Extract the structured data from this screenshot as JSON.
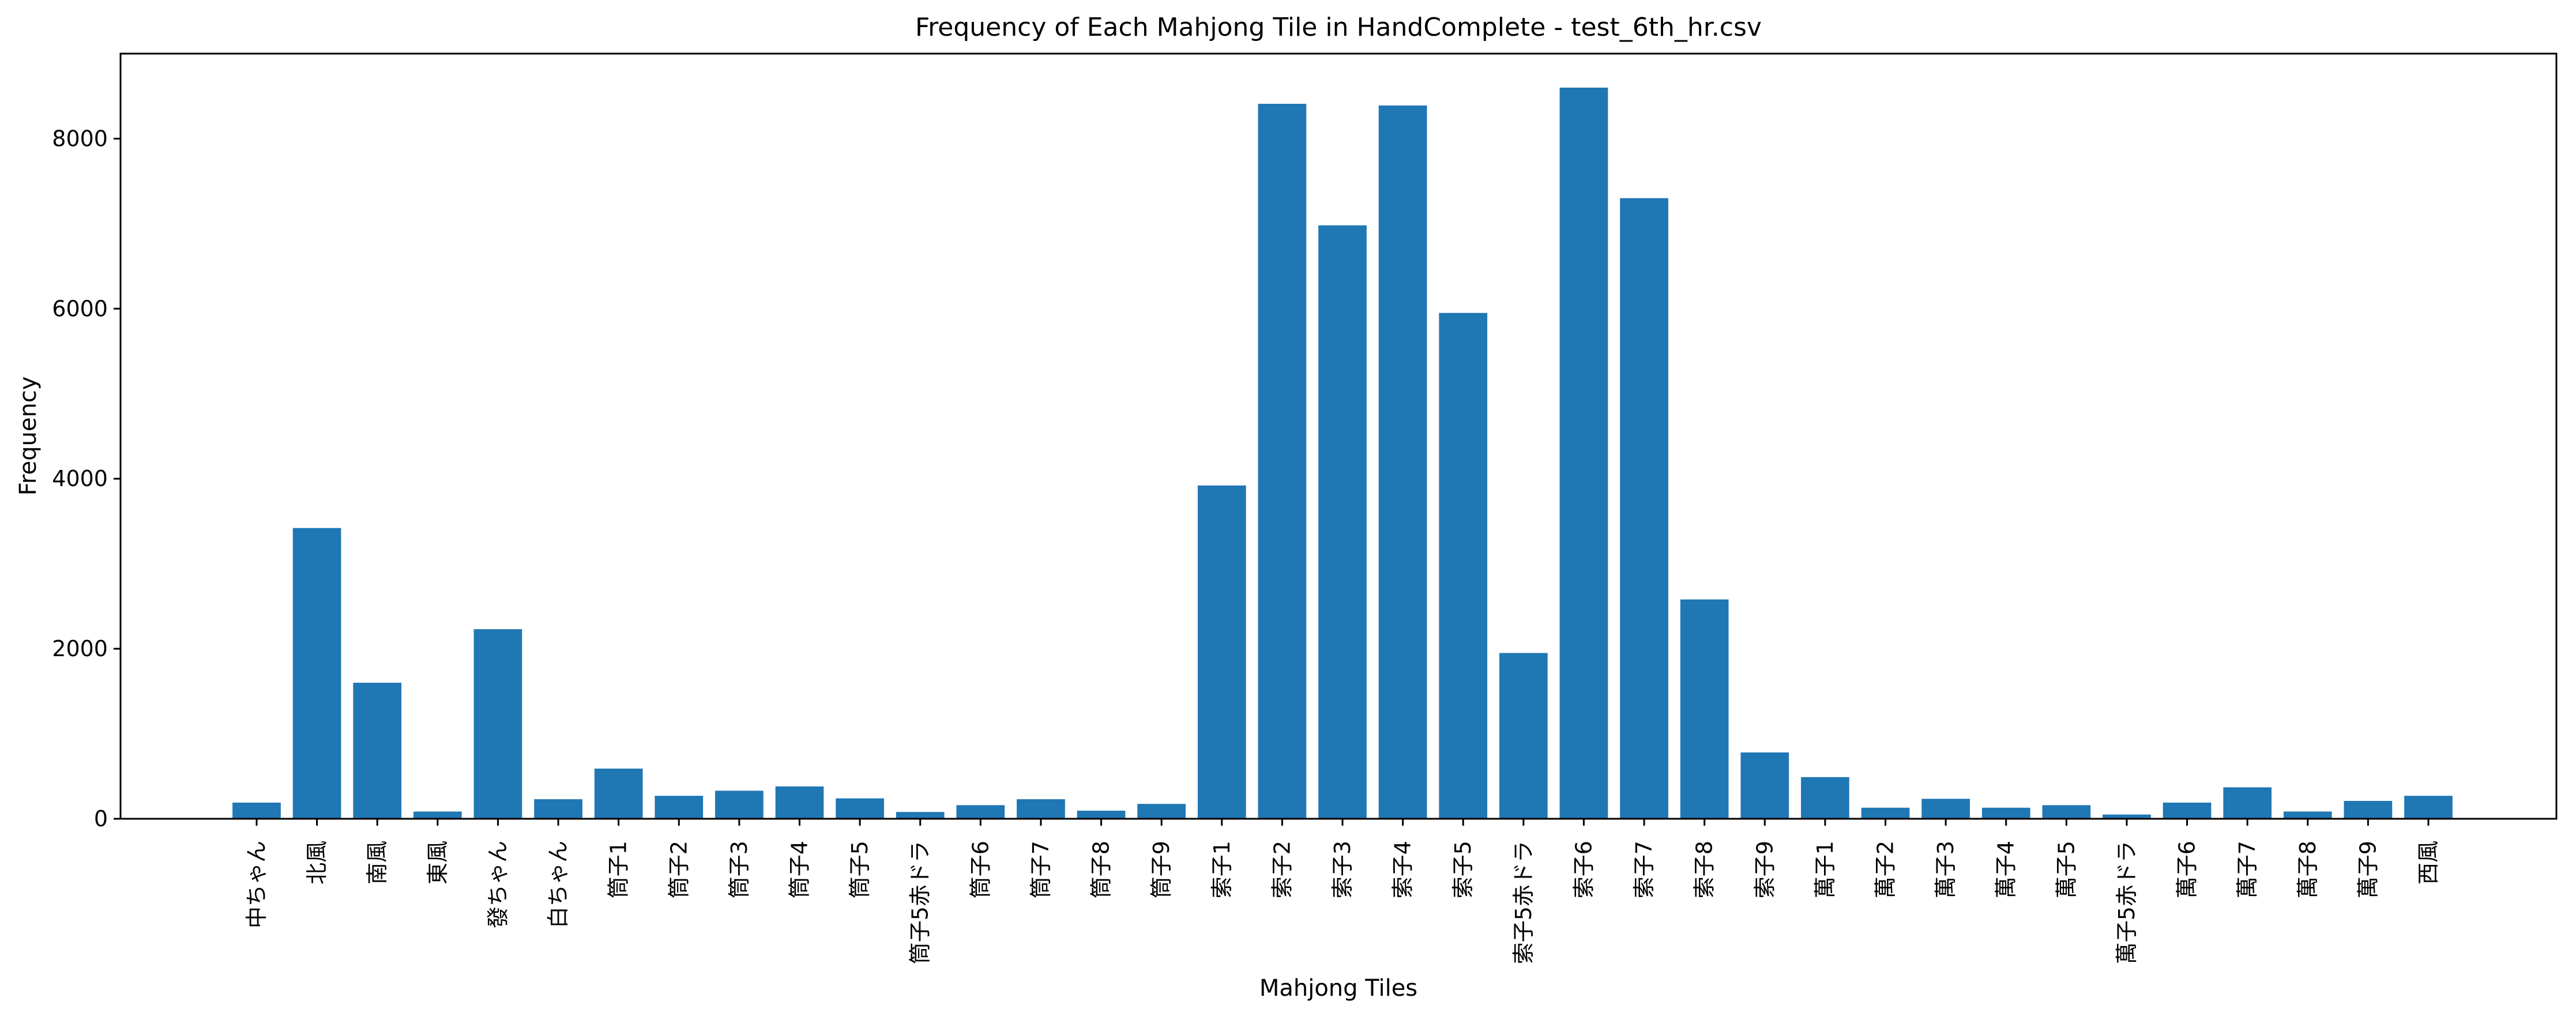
{
  "chart_data": {
    "type": "bar",
    "title": "Frequency of Each Mahjong Tile in HandComplete - test_6th_hr.csv",
    "xlabel": "Mahjong Tiles",
    "ylabel": "Frequency",
    "ylim": [
      0,
      9000
    ],
    "yticks": [
      0,
      2000,
      4000,
      6000,
      8000
    ],
    "ytick_labels": [
      "0",
      "2000",
      "4000",
      "6000",
      "8000"
    ],
    "bar_color": "#1f77b4",
    "grid": false,
    "categories": [
      "中ちゃん",
      "北風",
      "南風",
      "東風",
      "發ちゃん",
      "白ちゃん",
      "筒子1",
      "筒子2",
      "筒子3",
      "筒子4",
      "筒子5",
      "筒子5赤ドラ",
      "筒子6",
      "筒子7",
      "筒子8",
      "筒子9",
      "索子1",
      "索子2",
      "索子3",
      "索子4",
      "索子5",
      "索子5赤ドラ",
      "索子6",
      "索子7",
      "索子8",
      "索子9",
      "萬子1",
      "萬子2",
      "萬子3",
      "萬子4",
      "萬子5",
      "萬子5赤ドラ",
      "萬子6",
      "萬子7",
      "萬子8",
      "萬子9",
      "西風"
    ],
    "values": [
      190,
      3420,
      1600,
      85,
      2230,
      230,
      590,
      270,
      330,
      380,
      240,
      80,
      160,
      230,
      95,
      175,
      3920,
      8410,
      6980,
      8390,
      5950,
      1950,
      8600,
      7300,
      2580,
      780,
      490,
      130,
      235,
      130,
      160,
      50,
      190,
      370,
      85,
      210,
      270
    ]
  }
}
